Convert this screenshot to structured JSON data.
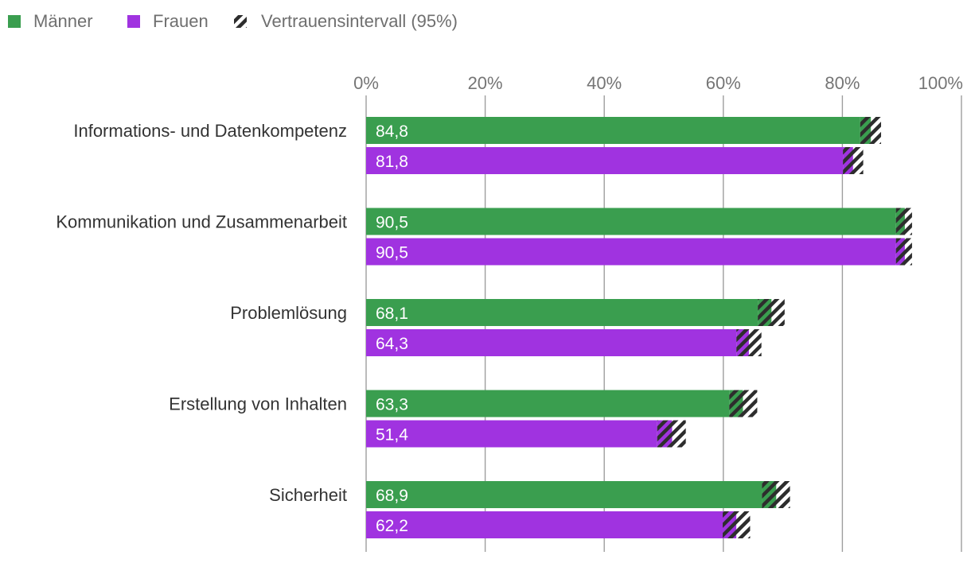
{
  "chart_data": {
    "type": "bar",
    "orientation": "horizontal",
    "categories": [
      "Informations- und Datenkompetenz",
      "Kommunikation und Zusammenarbeit",
      "Problemlösung",
      "Erstellung von Inhalten",
      "Sicherheit"
    ],
    "series": [
      {
        "name": "Männer",
        "color": "#3a9e4f",
        "values": [
          84.8,
          90.5,
          68.1,
          63.3,
          68.9
        ],
        "labels": [
          "84,8",
          "90,5",
          "68,1",
          "63,3",
          "68,9"
        ],
        "ci_low": [
          83.0,
          89.0,
          65.8,
          61.0,
          66.5
        ],
        "ci_high": [
          86.5,
          91.7,
          70.3,
          65.7,
          71.2
        ]
      },
      {
        "name": "Frauen",
        "color": "#a033e0",
        "values": [
          81.8,
          90.5,
          64.3,
          51.4,
          62.2
        ],
        "labels": [
          "81,8",
          "90,5",
          "64,3",
          "51,4",
          "62,2"
        ],
        "ci_low": [
          80.1,
          89.0,
          62.2,
          48.9,
          59.9
        ],
        "ci_high": [
          83.5,
          91.7,
          66.4,
          53.7,
          64.5
        ]
      }
    ],
    "confidence_interval_label": "Vertrauensintervall (95%)",
    "xlim": [
      0,
      100
    ],
    "xticks": [
      0,
      20,
      40,
      60,
      80,
      100
    ],
    "xtick_labels": [
      "0%",
      "20%",
      "40%",
      "60%",
      "80%",
      "100%"
    ],
    "grid": true,
    "legend_position": "top-left"
  },
  "colors": {
    "grid": "#9e9e9e",
    "ci_stripe": "#2d2d2d"
  }
}
